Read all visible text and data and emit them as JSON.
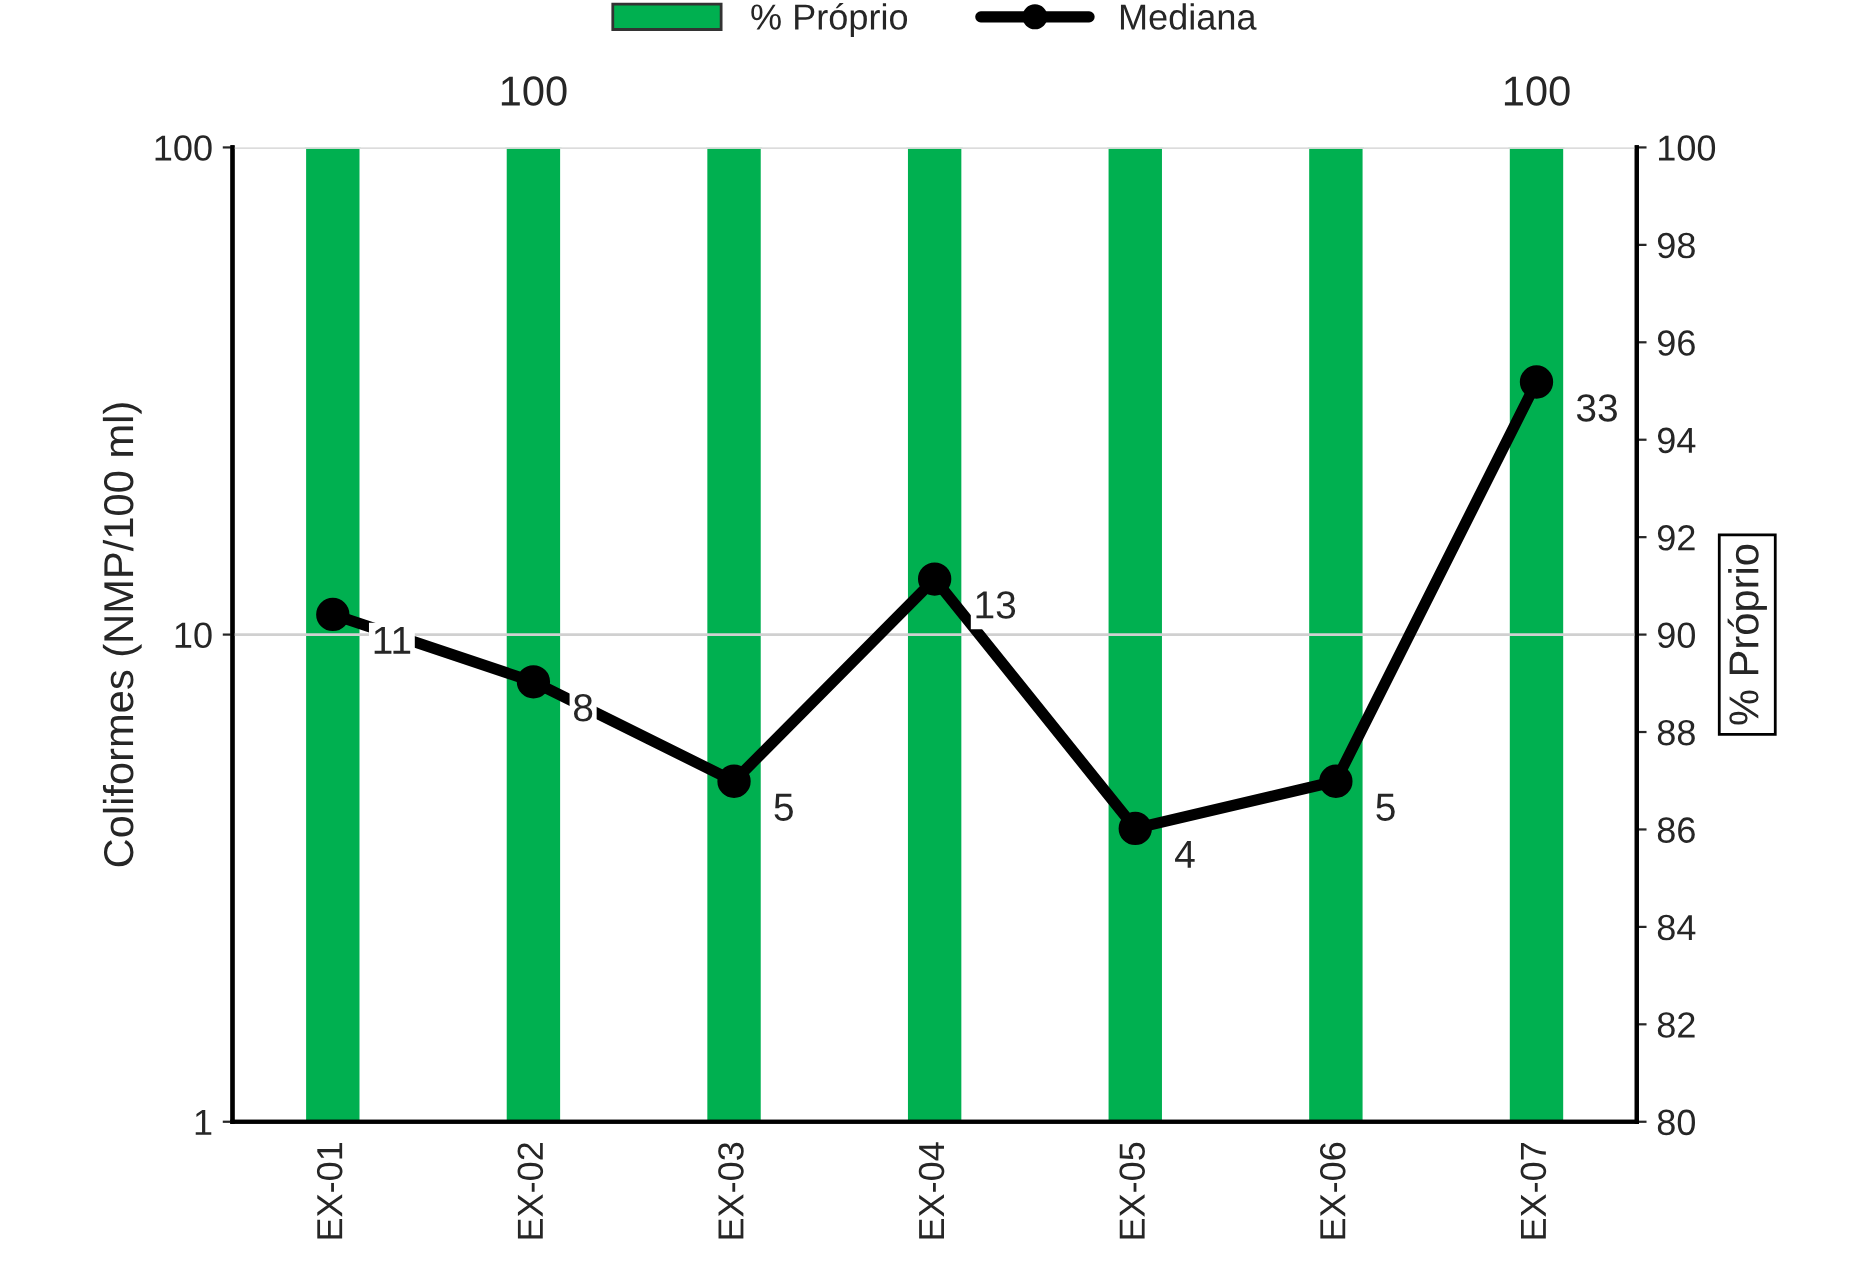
{
  "chart_data": {
    "type": "bar",
    "categories": [
      "EX-01",
      "EX-02",
      "EX-03",
      "EX-04",
      "EX-05",
      "EX-06",
      "EX-07"
    ],
    "series": [
      {
        "name": "% Próprio",
        "axis": "y2",
        "color": "#00b050",
        "values": [
          100,
          100,
          100,
          100,
          100,
          100,
          100
        ],
        "value_labels": [
          null,
          "100",
          null,
          null,
          null,
          null,
          "100"
        ]
      },
      {
        "name": "Mediana",
        "type": "line",
        "color": "#000000",
        "values": [
          11,
          8,
          5,
          13,
          4,
          5,
          33
        ],
        "value_labels": [
          "11",
          "8",
          "5",
          "13",
          "4",
          "5",
          "33"
        ]
      }
    ],
    "ylabel": "Coliformes (NMP/100 ml)",
    "y2label": "% Próprio",
    "log": "y",
    "ylim": [
      1,
      100
    ],
    "yticks": [
      1,
      10,
      100
    ],
    "y2lim": [
      80,
      100
    ],
    "y2ticks": [
      80,
      82,
      84,
      86,
      88,
      90,
      92,
      94,
      96,
      98,
      100
    ],
    "grid": "y",
    "legend": "top",
    "marker": "circle",
    "line_style": "solid"
  }
}
